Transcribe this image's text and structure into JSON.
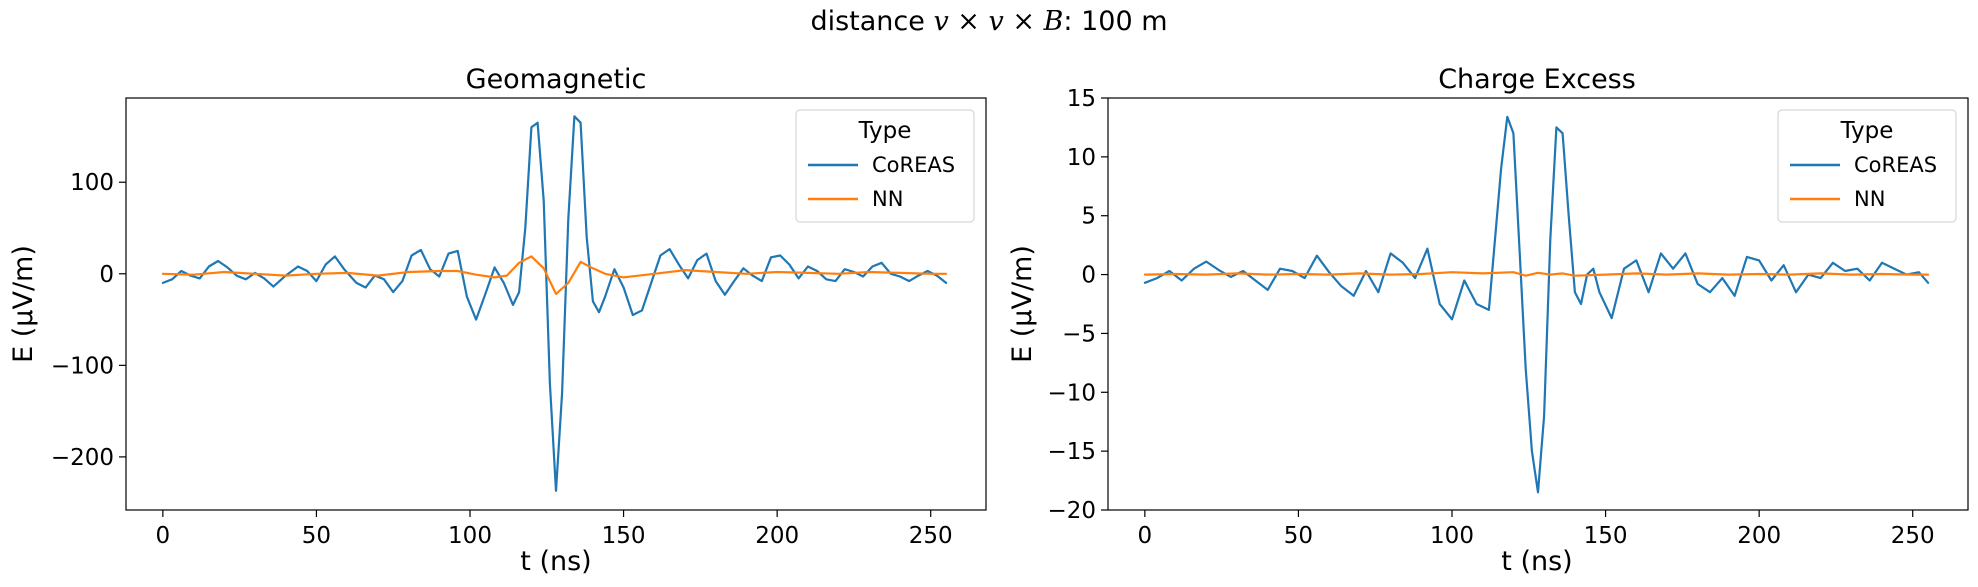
{
  "figure": {
    "suptitle_prefix": "distance ",
    "suptitle_math": "v × v × B",
    "suptitle_suffix": ": 100 m"
  },
  "chart_data": [
    {
      "type": "line",
      "title": "Geomagnetic",
      "xlabel": "t (ns)",
      "ylabel": "E (µV/m)",
      "xlim": [
        -12,
        268
      ],
      "ylim": [
        -258,
        192
      ],
      "xticks": [
        0,
        50,
        100,
        150,
        200,
        250
      ],
      "xtick_labels": [
        "0",
        "50",
        "100",
        "150",
        "200",
        "250"
      ],
      "yticks": [
        -200,
        -100,
        0,
        100
      ],
      "ytick_labels": [
        "−200",
        "−100",
        "0",
        "100"
      ],
      "legend": {
        "title": "Type",
        "position": "upper right"
      },
      "series": [
        {
          "name": "CoREAS",
          "color": "#1f77b4",
          "x": [
            0,
            3,
            6,
            9,
            12,
            15,
            18,
            21,
            24,
            27,
            30,
            33,
            36,
            40,
            44,
            47,
            50,
            53,
            56,
            59,
            63,
            66,
            69,
            72,
            75,
            78,
            81,
            84,
            87,
            90,
            93,
            96,
            99,
            102,
            105,
            108,
            111,
            114,
            116,
            118,
            120,
            122,
            124,
            126,
            128,
            130,
            132,
            134,
            136,
            138,
            140,
            142,
            144,
            147,
            150,
            153,
            156,
            159,
            162,
            165,
            168,
            171,
            174,
            177,
            180,
            183,
            186,
            189,
            192,
            195,
            198,
            201,
            204,
            207,
            210,
            213,
            216,
            219,
            222,
            225,
            228,
            231,
            234,
            237,
            240,
            243,
            246,
            249,
            252,
            255
          ],
          "y": [
            -10,
            -6,
            3,
            -2,
            -5,
            8,
            14,
            7,
            -2,
            -6,
            1,
            -5,
            -14,
            -2,
            8,
            3,
            -8,
            10,
            19,
            5,
            -10,
            -15,
            -2,
            -6,
            -20,
            -8,
            20,
            26,
            5,
            -3,
            22,
            25,
            -25,
            -50,
            -22,
            7,
            -10,
            -34,
            -20,
            50,
            160,
            165,
            80,
            -120,
            -237,
            -130,
            60,
            172,
            165,
            40,
            -30,
            -42,
            -25,
            5,
            -15,
            -45,
            -40,
            -10,
            20,
            27,
            10,
            -5,
            15,
            22,
            -8,
            -23,
            -8,
            6,
            -2,
            -8,
            18,
            20,
            10,
            -5,
            8,
            3,
            -6,
            -8,
            5,
            2,
            -3,
            8,
            12,
            0,
            -3,
            -8,
            -2,
            3,
            -2,
            -10
          ]
        },
        {
          "name": "NN",
          "color": "#ff7f0e",
          "x": [
            0,
            10,
            20,
            30,
            40,
            50,
            60,
            70,
            80,
            90,
            96,
            102,
            108,
            112,
            116,
            120,
            124,
            128,
            132,
            136,
            140,
            144,
            150,
            160,
            170,
            180,
            190,
            200,
            210,
            220,
            230,
            240,
            250,
            255
          ],
          "y": [
            0,
            -1,
            2,
            0,
            -2,
            0,
            1,
            -2,
            2,
            3,
            3,
            -1,
            -4,
            -2,
            12,
            19,
            6,
            -22,
            -10,
            13,
            6,
            0,
            -4,
            0,
            4,
            2,
            0,
            2,
            1,
            0,
            2,
            1,
            0,
            0
          ]
        }
      ]
    },
    {
      "type": "line",
      "title": "Charge Excess",
      "xlabel": "t (ns)",
      "ylabel": "E (µV/m)",
      "xlim": [
        -12,
        268
      ],
      "ylim": [
        -20,
        15
      ],
      "xticks": [
        0,
        50,
        100,
        150,
        200,
        250
      ],
      "xtick_labels": [
        "0",
        "50",
        "100",
        "150",
        "200",
        "250"
      ],
      "yticks": [
        -20,
        -15,
        -10,
        -5,
        0,
        5,
        10,
        15
      ],
      "ytick_labels": [
        "−20",
        "−15",
        "−10",
        "−5",
        "0",
        "5",
        "10",
        "15"
      ],
      "legend": {
        "title": "Type",
        "position": "upper right"
      },
      "series": [
        {
          "name": "CoREAS",
          "color": "#1f77b4",
          "x": [
            0,
            4,
            8,
            12,
            16,
            20,
            24,
            28,
            32,
            36,
            40,
            44,
            48,
            52,
            56,
            60,
            64,
            68,
            72,
            76,
            80,
            84,
            88,
            92,
            96,
            100,
            104,
            108,
            112,
            114,
            116,
            118,
            120,
            122,
            124,
            126,
            128,
            130,
            132,
            134,
            136,
            138,
            140,
            142,
            144,
            146,
            148,
            152,
            156,
            160,
            164,
            168,
            172,
            176,
            180,
            184,
            188,
            192,
            196,
            200,
            204,
            208,
            212,
            216,
            220,
            224,
            228,
            232,
            236,
            240,
            244,
            248,
            252,
            255
          ],
          "y": [
            -0.7,
            -0.3,
            0.3,
            -0.5,
            0.5,
            1.1,
            0.4,
            -0.2,
            0.3,
            -0.5,
            -1.3,
            0.5,
            0.3,
            -0.3,
            1.6,
            0.2,
            -1.0,
            -1.8,
            0.3,
            -1.5,
            1.8,
            1.0,
            -0.3,
            2.2,
            -2.5,
            -3.8,
            -0.5,
            -2.5,
            -3.0,
            3.0,
            9.0,
            13.4,
            12.0,
            2.0,
            -8.0,
            -15.0,
            -18.5,
            -12.0,
            3.0,
            12.5,
            12.0,
            5.0,
            -1.5,
            -2.5,
            0.0,
            0.5,
            -1.5,
            -3.7,
            0.5,
            1.2,
            -1.5,
            1.8,
            0.5,
            1.8,
            -0.8,
            -1.5,
            -0.3,
            -1.8,
            1.5,
            1.2,
            -0.5,
            0.8,
            -1.5,
            0.0,
            -0.3,
            1.0,
            0.3,
            0.5,
            -0.5,
            1.0,
            0.5,
            0.0,
            0.2,
            -0.7
          ]
        },
        {
          "name": "NN",
          "color": "#ff7f0e",
          "x": [
            0,
            10,
            20,
            30,
            40,
            50,
            60,
            70,
            80,
            90,
            100,
            110,
            120,
            124,
            128,
            132,
            136,
            140,
            150,
            160,
            170,
            180,
            190,
            200,
            210,
            220,
            230,
            240,
            250,
            255
          ],
          "y": [
            0,
            0.05,
            0,
            0.1,
            0,
            0.05,
            0,
            0.1,
            0,
            0.05,
            0.2,
            0.1,
            0.2,
            -0.1,
            0.15,
            0,
            0.1,
            -0.1,
            0,
            0.1,
            0,
            0.1,
            0,
            0.05,
            0,
            0.1,
            0,
            0.05,
            0,
            0
          ]
        }
      ]
    }
  ]
}
